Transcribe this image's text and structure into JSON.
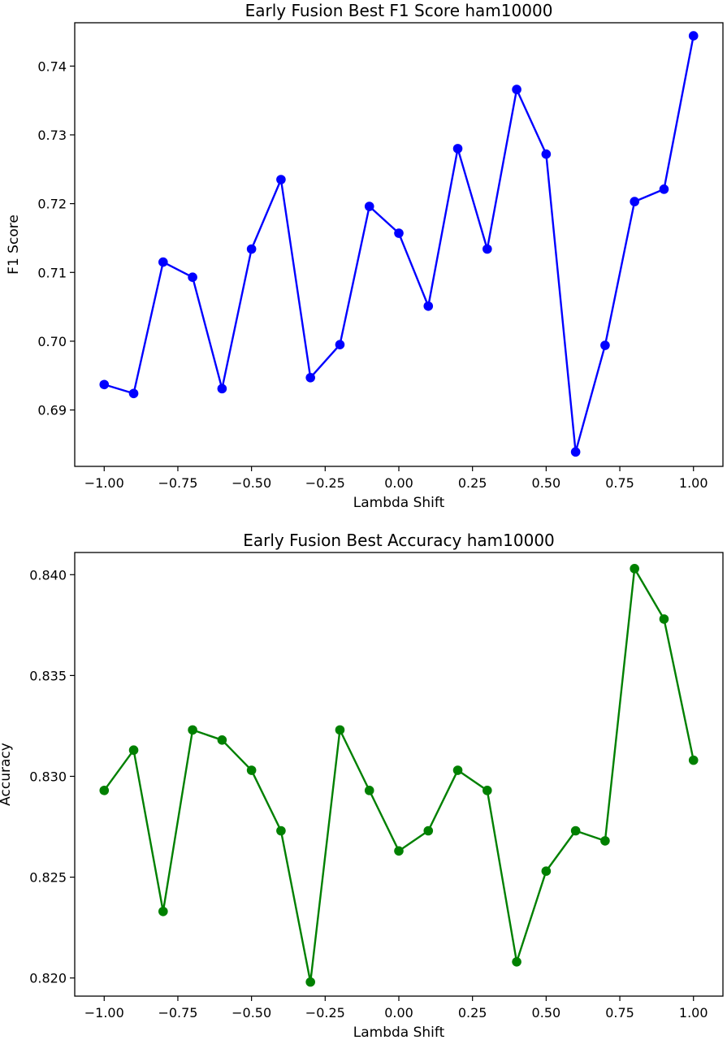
{
  "chart_data": [
    {
      "type": "line",
      "title": "Early Fusion Best F1 Score ham10000",
      "xlabel": "Lambda Shift",
      "ylabel": "F1 Score",
      "color": "#0000ff",
      "xlim": [
        -1.1,
        1.1
      ],
      "ylim": [
        0.6818,
        0.7463
      ],
      "xticks": [
        -1.0,
        -0.75,
        -0.5,
        -0.25,
        0.0,
        0.25,
        0.5,
        0.75,
        1.0
      ],
      "xtick_labels": [
        "−1.00",
        "−0.75",
        "−0.50",
        "−0.25",
        "0.00",
        "0.25",
        "0.50",
        "0.75",
        "1.00"
      ],
      "yticks": [
        0.69,
        0.7,
        0.71,
        0.72,
        0.73,
        0.74
      ],
      "ytick_labels": [
        "0.69",
        "0.70",
        "0.71",
        "0.72",
        "0.73",
        "0.74"
      ],
      "grid": false,
      "x": [
        -1.0,
        -0.9,
        -0.8,
        -0.7,
        -0.6,
        -0.5,
        -0.4,
        -0.3,
        -0.2,
        -0.1,
        0.0,
        0.1,
        0.2,
        0.3,
        0.4,
        0.5,
        0.6,
        0.7,
        0.8,
        0.9,
        1.0
      ],
      "y": [
        0.6937,
        0.6924,
        0.7115,
        0.7093,
        0.6931,
        0.7134,
        0.7235,
        0.6947,
        0.6995,
        0.7196,
        0.7157,
        0.7051,
        0.728,
        0.7134,
        0.7366,
        0.7272,
        0.6839,
        0.6994,
        0.7203,
        0.7221,
        0.7444
      ]
    },
    {
      "type": "line",
      "title": "Early Fusion Best Accuracy ham10000",
      "xlabel": "Lambda Shift",
      "ylabel": "Accuracy",
      "color": "#008000",
      "xlim": [
        -1.1,
        1.1
      ],
      "ylim": [
        0.8191,
        0.8411
      ],
      "xticks": [
        -1.0,
        -0.75,
        -0.5,
        -0.25,
        0.0,
        0.25,
        0.5,
        0.75,
        1.0
      ],
      "xtick_labels": [
        "−1.00",
        "−0.75",
        "−0.50",
        "−0.25",
        "0.00",
        "0.25",
        "0.50",
        "0.75",
        "1.00"
      ],
      "yticks": [
        0.82,
        0.825,
        0.83,
        0.835,
        0.84
      ],
      "ytick_labels": [
        "0.820",
        "0.825",
        "0.830",
        "0.835",
        "0.840"
      ],
      "grid": false,
      "x": [
        -1.0,
        -0.9,
        -0.8,
        -0.7,
        -0.6,
        -0.5,
        -0.4,
        -0.3,
        -0.2,
        -0.1,
        0.0,
        0.1,
        0.2,
        0.3,
        0.4,
        0.5,
        0.6,
        0.7,
        0.8,
        0.9,
        1.0
      ],
      "y": [
        0.8293,
        0.8313,
        0.8233,
        0.8323,
        0.8318,
        0.8303,
        0.8273,
        0.8198,
        0.8323,
        0.8293,
        0.8263,
        0.8273,
        0.8303,
        0.8293,
        0.8208,
        0.8253,
        0.8273,
        0.8268,
        0.8403,
        0.8378,
        0.8308
      ]
    }
  ]
}
